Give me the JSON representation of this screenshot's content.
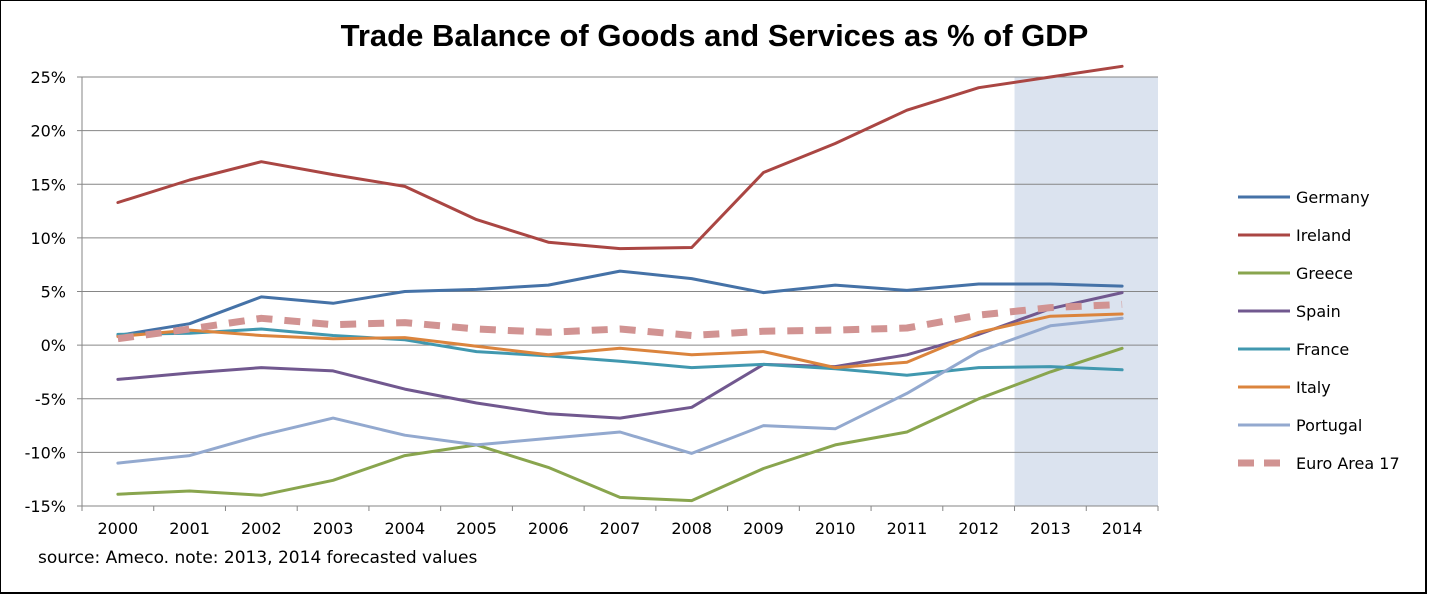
{
  "chart_data": {
    "type": "line",
    "title": "Trade Balance of Goods and Services as % of GDP",
    "note": "source: Ameco. note: 2013, 2014 forecasted values",
    "x": [
      "2000",
      "2001",
      "2002",
      "2003",
      "2004",
      "2005",
      "2006",
      "2007",
      "2008",
      "2009",
      "2010",
      "2011",
      "2012",
      "2013",
      "2014"
    ],
    "ylim": [
      -15,
      25
    ],
    "yticks": [
      25,
      20,
      15,
      10,
      5,
      0,
      -5,
      -10,
      -15
    ],
    "ytick_labels": [
      "25%",
      "20%",
      "15%",
      "10%",
      "5%",
      "0%",
      "-5%",
      "-10%",
      "-15%"
    ],
    "grid": true,
    "legend_position": "right",
    "forecast_highlight": {
      "from": "2013",
      "to": "2014",
      "color": "#dbe3ef"
    },
    "series": [
      {
        "name": "Germany",
        "color": "#4572a7",
        "dashed": false,
        "values": [
          0.9,
          2.0,
          4.5,
          3.9,
          5.0,
          5.2,
          5.6,
          6.9,
          6.2,
          4.9,
          5.6,
          5.1,
          5.7,
          5.7,
          5.5
        ]
      },
      {
        "name": "Ireland",
        "color": "#aa4643",
        "dashed": false,
        "values": [
          13.3,
          15.4,
          17.1,
          15.9,
          14.8,
          11.7,
          9.6,
          9.0,
          9.1,
          16.1,
          18.8,
          21.9,
          24.0,
          25.0,
          26.0
        ]
      },
      {
        "name": "Greece",
        "color": "#89a54e",
        "dashed": false,
        "values": [
          -13.9,
          -13.6,
          -14.0,
          -12.6,
          -10.3,
          -9.3,
          -11.4,
          -14.2,
          -14.5,
          -11.5,
          -9.3,
          -8.1,
          -5.0,
          -2.5,
          -0.3
        ]
      },
      {
        "name": "Spain",
        "color": "#71588f",
        "dashed": false,
        "values": [
          -3.2,
          -2.6,
          -2.1,
          -2.4,
          -4.1,
          -5.4,
          -6.4,
          -6.8,
          -5.8,
          -1.8,
          -2.0,
          -0.9,
          1.0,
          3.4,
          4.9
        ]
      },
      {
        "name": "France",
        "color": "#4198af",
        "dashed": false,
        "values": [
          1.0,
          1.1,
          1.5,
          0.9,
          0.5,
          -0.6,
          -1.0,
          -1.5,
          -2.1,
          -1.8,
          -2.2,
          -2.8,
          -2.1,
          -2.0,
          -2.3
        ]
      },
      {
        "name": "Italy",
        "color": "#db843d",
        "dashed": false,
        "values": [
          0.8,
          1.4,
          0.9,
          0.6,
          0.7,
          -0.1,
          -0.9,
          -0.3,
          -0.9,
          -0.6,
          -2.1,
          -1.6,
          1.2,
          2.7,
          2.9
        ]
      },
      {
        "name": "Portugal",
        "color": "#93a9cf",
        "dashed": false,
        "values": [
          -11.0,
          -10.3,
          -8.4,
          -6.8,
          -8.4,
          -9.3,
          -8.7,
          -8.1,
          -10.1,
          -7.5,
          -7.8,
          -4.5,
          -0.6,
          1.8,
          2.5
        ]
      },
      {
        "name": "Euro Area 17",
        "color": "#d19392",
        "dashed": true,
        "values": [
          0.6,
          1.5,
          2.5,
          1.9,
          2.1,
          1.5,
          1.2,
          1.5,
          0.9,
          1.3,
          1.4,
          1.6,
          2.8,
          3.5,
          3.8
        ]
      }
    ]
  }
}
